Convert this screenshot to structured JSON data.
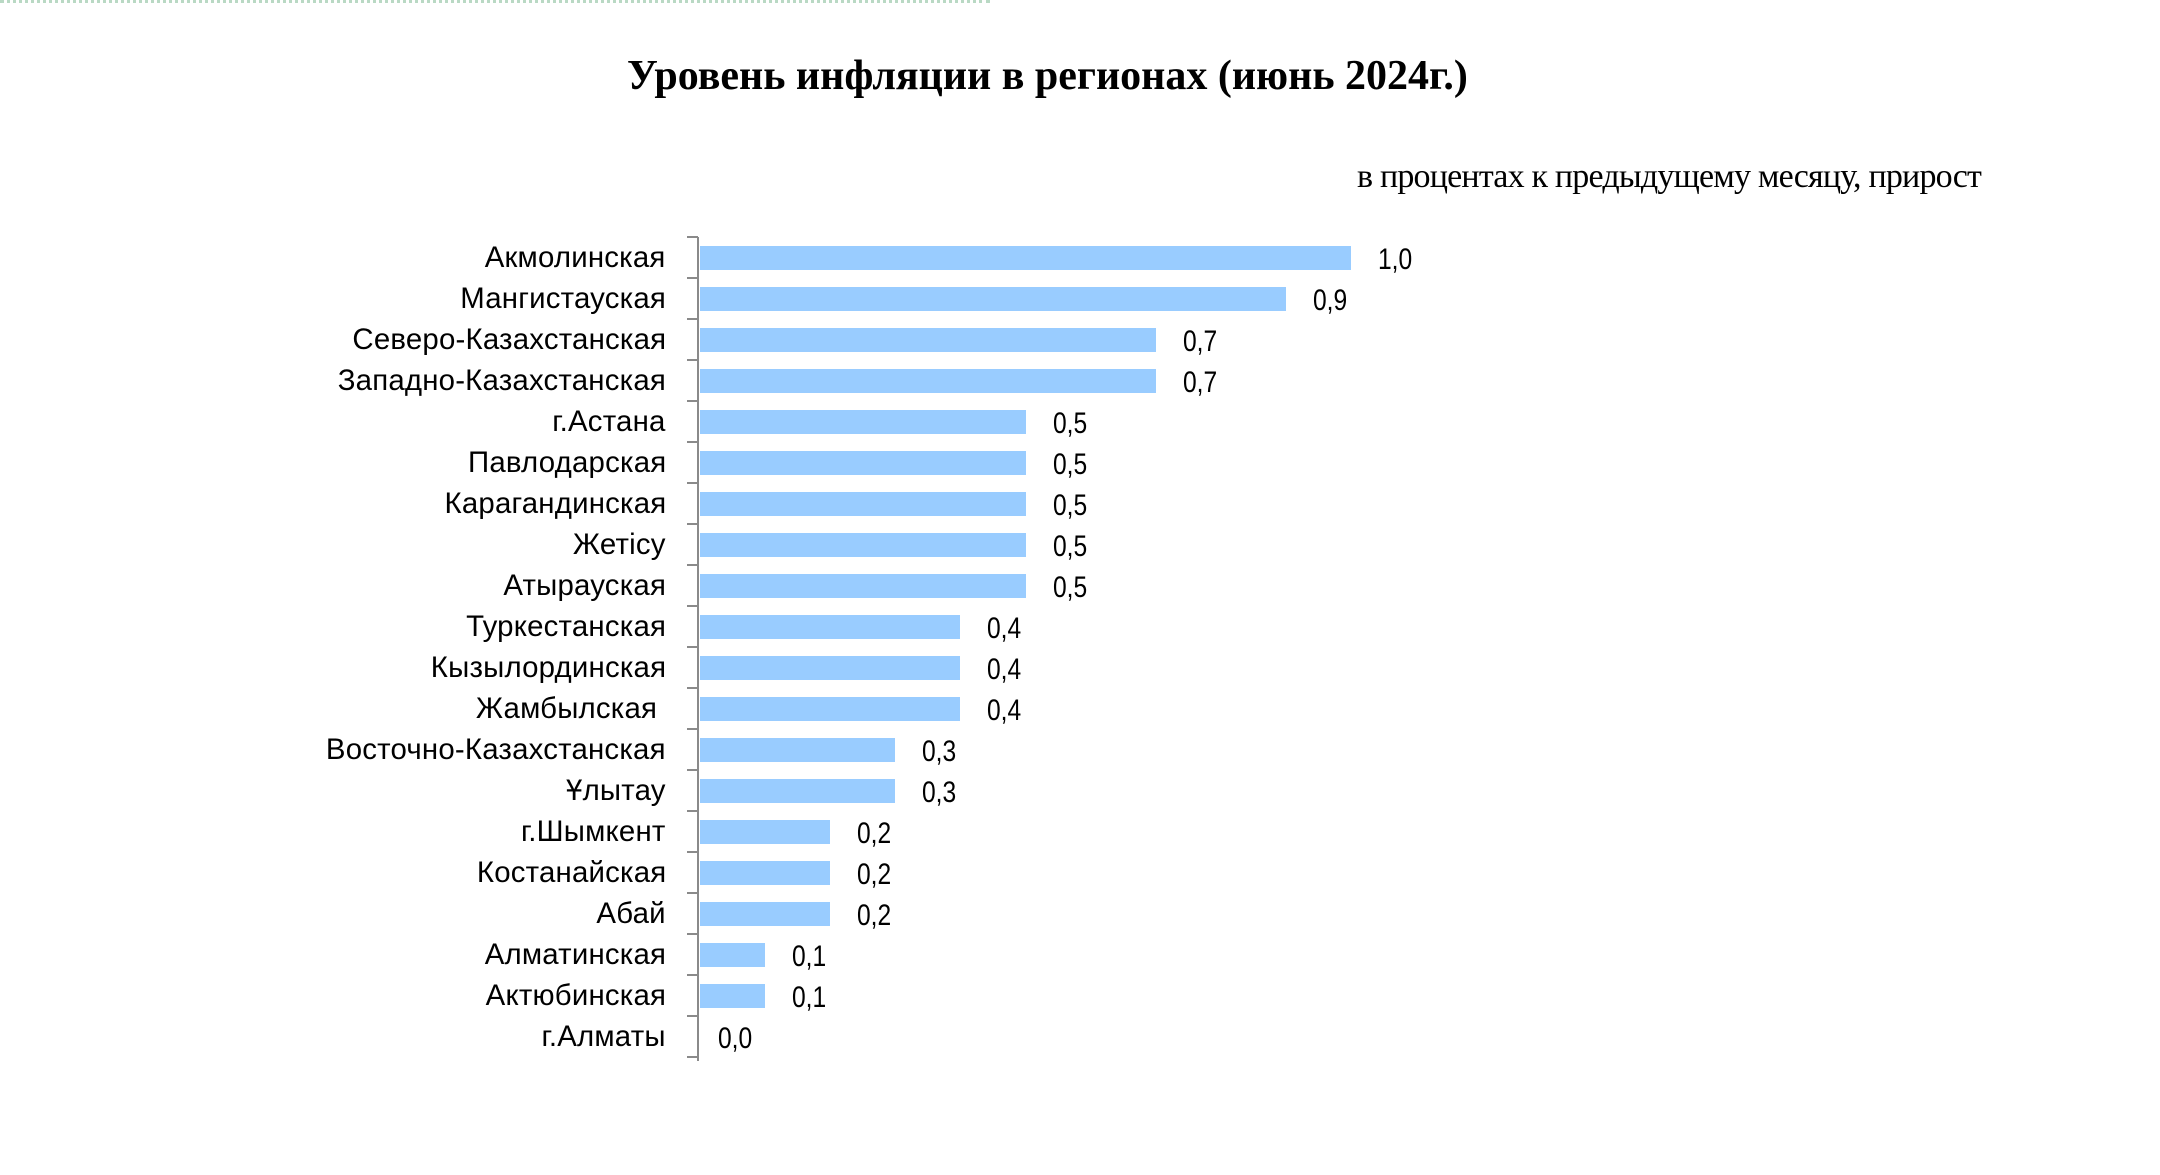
{
  "page": {
    "title": "Уровень инфляции в регионах (июнь 2024г.)",
    "subtitle": "в процентах к предыдущему месяцу, прирост"
  },
  "colors": {
    "bar": "#99ccff",
    "axis": "#8a8a8a",
    "text": "#000000",
    "top_border": "#b9d9c4"
  },
  "chart_data": {
    "type": "bar",
    "orientation": "horizontal",
    "title": "Уровень инфляции в регионах (июнь 2024г.)",
    "subtitle": "в процентах к предыдущему месяцу, прирост",
    "xlabel": "",
    "ylabel": "",
    "xlim": [
      0,
      1.0
    ],
    "grid": false,
    "legend": null,
    "data_labels": true,
    "categories": [
      "Акмолинская",
      "Мангистауская",
      "Северо-Казахстанская",
      "Западно-Казахстанская",
      "г.Астана",
      "Павлодарская",
      "Карагандинская",
      "Жетісу",
      "Атырауская",
      "Туркестанская",
      "Кызылординская",
      "Жамбылская ",
      "Восточно-Казахстанская",
      "Ұлытау",
      "г.Шымкент",
      "Костанайская",
      "Абай",
      "Алматинская",
      "Актюбинская",
      "г.Алматы"
    ],
    "values": [
      1.0,
      0.9,
      0.7,
      0.7,
      0.5,
      0.5,
      0.5,
      0.5,
      0.5,
      0.4,
      0.4,
      0.4,
      0.3,
      0.3,
      0.2,
      0.2,
      0.2,
      0.1,
      0.1,
      0.0
    ],
    "value_labels": [
      "1,0",
      "0,9",
      "0,7",
      "0,7",
      "0,5",
      "0,5",
      "0,5",
      "0,5",
      "0,5",
      "0,4",
      "0,4",
      "0,4",
      "0,3",
      "0,3",
      "0,2",
      "0,2",
      "0,2",
      "0,1",
      "0,1",
      "0,0"
    ]
  }
}
